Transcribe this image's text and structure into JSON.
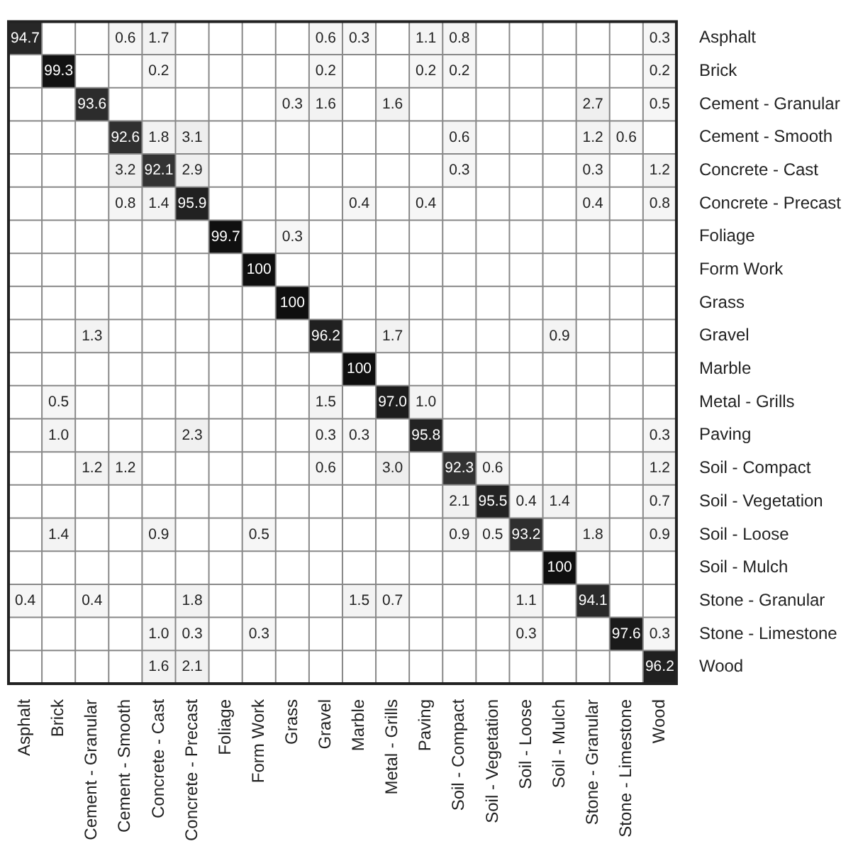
{
  "chart_data": {
    "type": "heatmap",
    "data_labels": true,
    "categories": [
      "Asphalt",
      "Brick",
      "Cement - Granular",
      "Cement - Smooth",
      "Concrete - Cast",
      "Concrete - Precast",
      "Foliage",
      "Form Work",
      "Grass",
      "Gravel",
      "Marble",
      "Metal - Grills",
      "Paving",
      "Soil - Compact",
      "Soil - Vegetation",
      "Soil - Loose",
      "Soil - Mulch",
      "Stone - Granular",
      "Stone - Limestone",
      "Wood"
    ],
    "y_categories": [
      "Asphalt",
      "Brick",
      "Cement - Granular",
      "Cement - Smooth",
      "Concrete - Cast",
      "Concrete - Precast",
      "Foliage",
      "Form Work",
      "Grass",
      "Gravel",
      "Marble",
      "Metal - Grills",
      "Paving",
      "Soil - Compact",
      "Soil - Vegetation",
      "Soil - Loose",
      "Soil - Mulch",
      "Stone - Granular",
      "Stone - Limestone",
      "Wood"
    ],
    "cells": [
      [
        94.7,
        null,
        null,
        0.6,
        1.7,
        null,
        null,
        null,
        null,
        0.6,
        0.3,
        null,
        1.1,
        0.8,
        null,
        null,
        null,
        null,
        null,
        0.3
      ],
      [
        null,
        99.3,
        null,
        null,
        0.2,
        null,
        null,
        null,
        null,
        0.2,
        null,
        null,
        0.2,
        0.2,
        null,
        null,
        null,
        null,
        null,
        0.2
      ],
      [
        null,
        null,
        93.6,
        null,
        null,
        null,
        null,
        null,
        0.3,
        1.6,
        null,
        1.6,
        null,
        null,
        null,
        null,
        null,
        2.7,
        null,
        0.5
      ],
      [
        null,
        null,
        null,
        92.6,
        1.8,
        3.1,
        null,
        null,
        null,
        null,
        null,
        null,
        null,
        0.6,
        null,
        null,
        null,
        1.2,
        0.6,
        null
      ],
      [
        null,
        null,
        null,
        3.2,
        92.1,
        2.9,
        null,
        null,
        null,
        null,
        null,
        null,
        null,
        0.3,
        null,
        null,
        null,
        0.3,
        null,
        1.2
      ],
      [
        null,
        null,
        null,
        0.8,
        1.4,
        95.9,
        null,
        null,
        null,
        null,
        0.4,
        null,
        0.4,
        null,
        null,
        null,
        null,
        0.4,
        null,
        0.8
      ],
      [
        null,
        null,
        null,
        null,
        null,
        null,
        99.7,
        null,
        0.3,
        null,
        null,
        null,
        null,
        null,
        null,
        null,
        null,
        null,
        null,
        null
      ],
      [
        null,
        null,
        null,
        null,
        null,
        null,
        null,
        100,
        null,
        null,
        null,
        null,
        null,
        null,
        null,
        null,
        null,
        null,
        null,
        null
      ],
      [
        null,
        null,
        null,
        null,
        null,
        null,
        null,
        null,
        100,
        null,
        null,
        null,
        null,
        null,
        null,
        null,
        null,
        null,
        null,
        null
      ],
      [
        null,
        null,
        1.3,
        null,
        null,
        null,
        null,
        null,
        null,
        96.2,
        null,
        1.7,
        null,
        null,
        null,
        null,
        0.9,
        null,
        null,
        null
      ],
      [
        null,
        null,
        null,
        null,
        null,
        null,
        null,
        null,
        null,
        null,
        100,
        null,
        null,
        null,
        null,
        null,
        null,
        null,
        null,
        null
      ],
      [
        null,
        0.5,
        null,
        null,
        null,
        null,
        null,
        null,
        null,
        1.5,
        null,
        97.0,
        1.0,
        null,
        null,
        null,
        null,
        null,
        null,
        null
      ],
      [
        null,
        1.0,
        null,
        null,
        null,
        2.3,
        null,
        null,
        null,
        0.3,
        0.3,
        null,
        95.8,
        null,
        null,
        null,
        null,
        null,
        null,
        0.3
      ],
      [
        null,
        null,
        1.2,
        1.2,
        null,
        null,
        null,
        null,
        null,
        0.6,
        null,
        3.0,
        null,
        92.3,
        0.6,
        null,
        null,
        null,
        null,
        1.2
      ],
      [
        null,
        null,
        null,
        null,
        null,
        null,
        null,
        null,
        null,
        null,
        null,
        null,
        null,
        2.1,
        95.5,
        0.4,
        1.4,
        null,
        null,
        0.7
      ],
      [
        null,
        1.4,
        null,
        null,
        0.9,
        null,
        null,
        0.5,
        null,
        null,
        null,
        null,
        null,
        0.9,
        0.5,
        93.2,
        null,
        1.8,
        null,
        0.9
      ],
      [
        null,
        null,
        null,
        null,
        null,
        null,
        null,
        null,
        null,
        null,
        null,
        null,
        null,
        null,
        null,
        null,
        100,
        null,
        null,
        null
      ],
      [
        0.4,
        null,
        0.4,
        null,
        null,
        1.8,
        null,
        null,
        null,
        null,
        1.5,
        0.7,
        null,
        null,
        null,
        1.1,
        null,
        94.1,
        null,
        null
      ],
      [
        null,
        null,
        null,
        null,
        1.0,
        0.3,
        null,
        0.3,
        null,
        null,
        null,
        null,
        null,
        null,
        null,
        0.3,
        null,
        null,
        97.6,
        0.3
      ],
      [
        null,
        null,
        null,
        null,
        1.6,
        2.1,
        null,
        null,
        null,
        null,
        null,
        null,
        null,
        null,
        null,
        null,
        null,
        null,
        null,
        96.2
      ]
    ],
    "cell_labels": [
      [
        "94.7",
        null,
        null,
        "0.6",
        "1.7",
        null,
        null,
        null,
        null,
        "0.6",
        "0.3",
        null,
        "1.1",
        "0.8",
        null,
        null,
        null,
        null,
        null,
        "0.3"
      ],
      [
        null,
        "99.3",
        null,
        null,
        "0.2",
        null,
        null,
        null,
        null,
        "0.2",
        null,
        null,
        "0.2",
        "0.2",
        null,
        null,
        null,
        null,
        null,
        "0.2"
      ],
      [
        null,
        null,
        "93.6",
        null,
        null,
        null,
        null,
        null,
        "0.3",
        "1.6",
        null,
        "1.6",
        null,
        null,
        null,
        null,
        null,
        "2.7",
        null,
        "0.5"
      ],
      [
        null,
        null,
        null,
        "92.6",
        "1.8",
        "3.1",
        null,
        null,
        null,
        null,
        null,
        null,
        null,
        "0.6",
        null,
        null,
        null,
        "1.2",
        "0.6",
        null
      ],
      [
        null,
        null,
        null,
        "3.2",
        "92.1",
        "2.9",
        null,
        null,
        null,
        null,
        null,
        null,
        null,
        "0.3",
        null,
        null,
        null,
        "0.3",
        null,
        "1.2"
      ],
      [
        null,
        null,
        null,
        "0.8",
        "1.4",
        "95.9",
        null,
        null,
        null,
        null,
        "0.4",
        null,
        "0.4",
        null,
        null,
        null,
        null,
        "0.4",
        null,
        "0.8"
      ],
      [
        null,
        null,
        null,
        null,
        null,
        null,
        "99.7",
        null,
        "0.3",
        null,
        null,
        null,
        null,
        null,
        null,
        null,
        null,
        null,
        null,
        null
      ],
      [
        null,
        null,
        null,
        null,
        null,
        null,
        null,
        "100",
        null,
        null,
        null,
        null,
        null,
        null,
        null,
        null,
        null,
        null,
        null,
        null
      ],
      [
        null,
        null,
        null,
        null,
        null,
        null,
        null,
        null,
        "100",
        null,
        null,
        null,
        null,
        null,
        null,
        null,
        null,
        null,
        null,
        null
      ],
      [
        null,
        null,
        "1.3",
        null,
        null,
        null,
        null,
        null,
        null,
        "96.2",
        null,
        "1.7",
        null,
        null,
        null,
        null,
        "0.9",
        null,
        null,
        null
      ],
      [
        null,
        null,
        null,
        null,
        null,
        null,
        null,
        null,
        null,
        null,
        "100",
        null,
        null,
        null,
        null,
        null,
        null,
        null,
        null,
        null
      ],
      [
        null,
        "0.5",
        null,
        null,
        null,
        null,
        null,
        null,
        null,
        "1.5",
        null,
        "97.0",
        "1.0",
        null,
        null,
        null,
        null,
        null,
        null,
        null
      ],
      [
        null,
        "1.0",
        null,
        null,
        null,
        "2.3",
        null,
        null,
        null,
        "0.3",
        "0.3",
        null,
        "95.8",
        null,
        null,
        null,
        null,
        null,
        null,
        "0.3"
      ],
      [
        null,
        null,
        "1.2",
        "1.2",
        null,
        null,
        null,
        null,
        null,
        "0.6",
        null,
        "3.0",
        null,
        "92.3",
        "0.6",
        null,
        null,
        null,
        null,
        "1.2"
      ],
      [
        null,
        null,
        null,
        null,
        null,
        null,
        null,
        null,
        null,
        null,
        null,
        null,
        null,
        "2.1",
        "95.5",
        "0.4",
        "1.4",
        null,
        null,
        "0.7"
      ],
      [
        null,
        "1.4",
        null,
        null,
        "0.9",
        null,
        null,
        "0.5",
        null,
        null,
        null,
        null,
        null,
        "0.9",
        "0.5",
        "93.2",
        null,
        "1.8",
        null,
        "0.9"
      ],
      [
        null,
        null,
        null,
        null,
        null,
        null,
        null,
        null,
        null,
        null,
        null,
        null,
        null,
        null,
        null,
        null,
        "100",
        null,
        null,
        null
      ],
      [
        "0.4",
        null,
        "0.4",
        null,
        null,
        "1.8",
        null,
        null,
        null,
        null,
        "1.5",
        "0.7",
        null,
        null,
        null,
        "1.1",
        null,
        "94.1",
        null,
        null
      ],
      [
        null,
        null,
        null,
        null,
        "1.0",
        "0.3",
        null,
        "0.3",
        null,
        null,
        null,
        null,
        null,
        null,
        null,
        "0.3",
        null,
        null,
        "97.6",
        "0.3"
      ],
      [
        null,
        null,
        null,
        null,
        "1.6",
        "2.1",
        null,
        null,
        null,
        null,
        null,
        null,
        null,
        null,
        null,
        null,
        null,
        null,
        null,
        "96.2"
      ]
    ]
  }
}
